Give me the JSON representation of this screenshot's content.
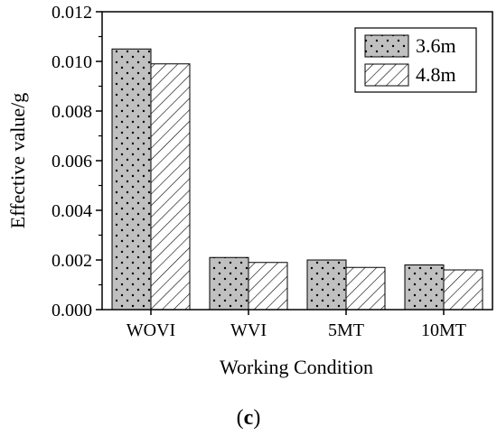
{
  "chart_data": {
    "type": "bar",
    "categories": [
      "WOVI",
      "WVI",
      "5MT",
      "10MT"
    ],
    "series": [
      {
        "name": "3.6m",
        "values": [
          0.0105,
          0.0021,
          0.002,
          0.0018
        ],
        "pattern": "dots",
        "color": "#c0c0c0"
      },
      {
        "name": "4.8m",
        "values": [
          0.0099,
          0.0019,
          0.0017,
          0.0016
        ],
        "pattern": "hatch",
        "color": "#ffffff"
      }
    ],
    "ylim": [
      0,
      0.012
    ],
    "yticks": [
      "0.000",
      "0.002",
      "0.004",
      "0.006",
      "0.008",
      "0.010",
      "0.012"
    ],
    "xlabel": "Working Condition",
    "ylabel": "Effective value/g",
    "legend_position": "top-right",
    "grid": false
  },
  "panel_label": {
    "open": "(",
    "letter": "c",
    "close": ")"
  }
}
